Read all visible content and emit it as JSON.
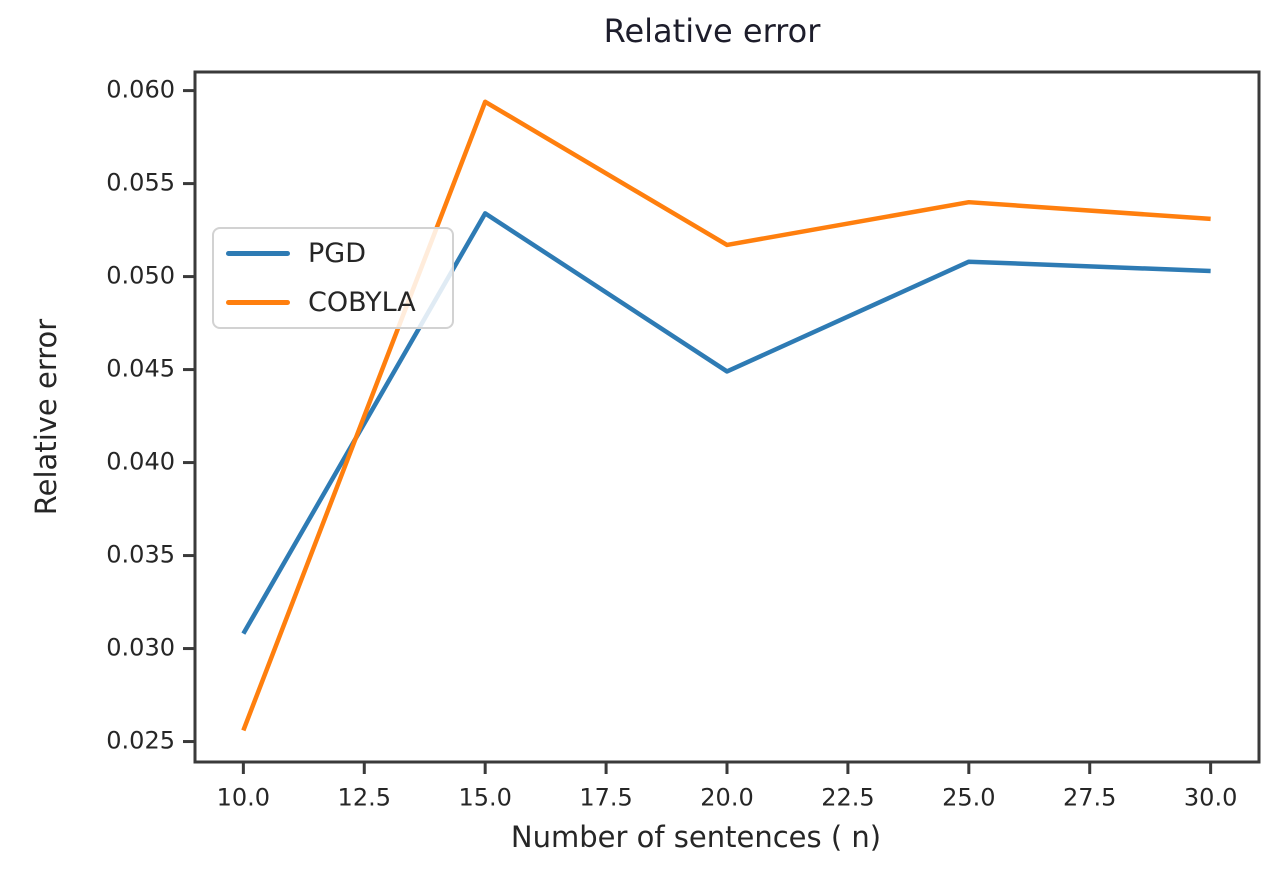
{
  "chart_data": {
    "type": "line",
    "title": "Relative error",
    "xlabel": "Number of sentences ( n)",
    "ylabel": "Relative error",
    "x": [
      10,
      15,
      20,
      25,
      30
    ],
    "series": [
      {
        "name": "PGD",
        "color": "#2e7bb4",
        "values": [
          0.0308,
          0.0534,
          0.0449,
          0.0508,
          0.0503
        ]
      },
      {
        "name": "COBYLA",
        "color": "#ff7f0e",
        "values": [
          0.0256,
          0.0594,
          0.0517,
          0.054,
          0.0531
        ]
      }
    ],
    "xlim": [
      9.0,
      31.0
    ],
    "ylim": [
      0.0239,
      0.061
    ],
    "xticks": {
      "values": [
        10,
        12.5,
        15,
        17.5,
        20,
        22.5,
        25,
        27.5,
        30
      ],
      "labels": [
        "10.0",
        "12.5",
        "15.0",
        "17.5",
        "20.0",
        "22.5",
        "25.0",
        "27.5",
        "30.0"
      ]
    },
    "yticks": {
      "values": [
        0.025,
        0.03,
        0.035,
        0.04,
        0.045,
        0.05,
        0.055,
        0.06
      ],
      "labels": [
        "0.025",
        "0.030",
        "0.035",
        "0.040",
        "0.045",
        "0.050",
        "0.055",
        "0.060"
      ]
    },
    "grid": false,
    "legend_position": "center-left-inside",
    "axis_color": "#3a3a3a",
    "text_color": "#262626"
  }
}
